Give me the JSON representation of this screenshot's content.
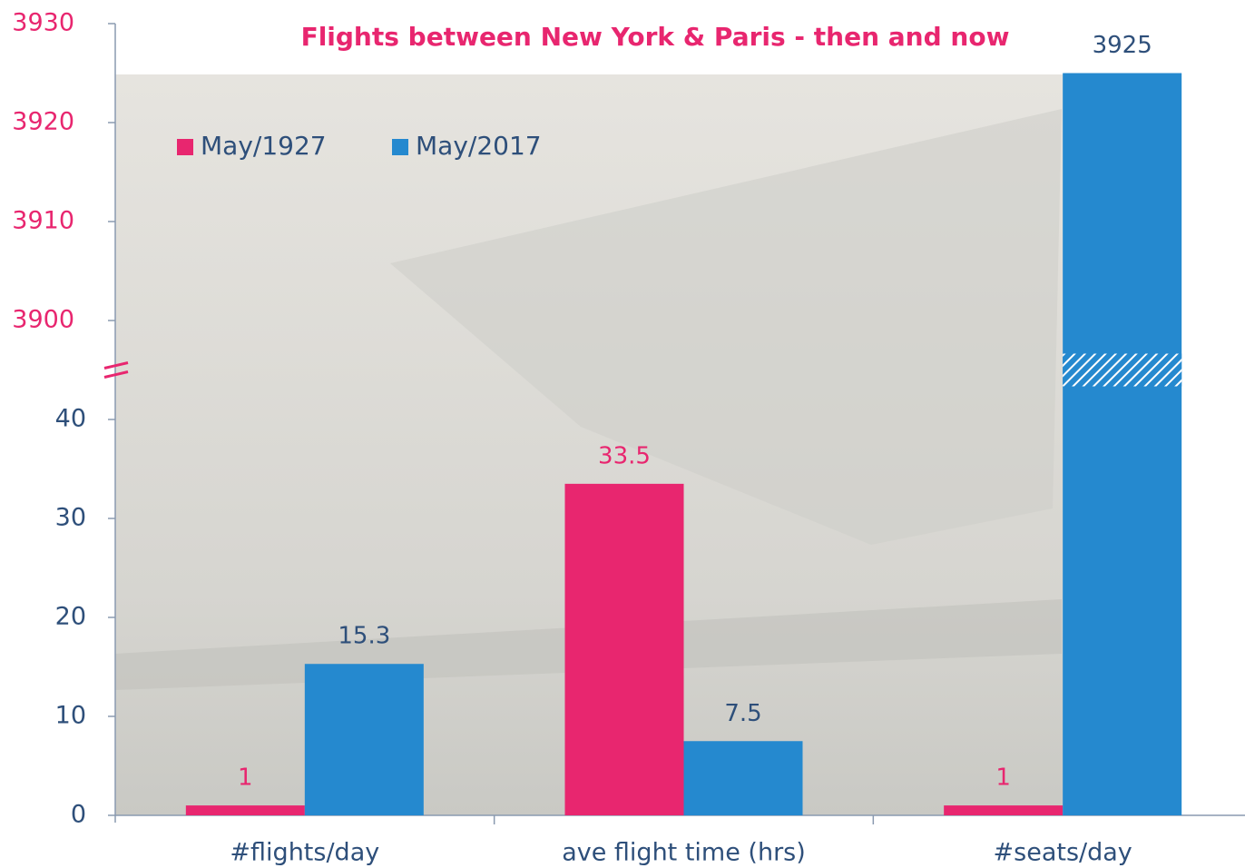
{
  "chart_data": {
    "type": "bar",
    "title": "Flights between New York & Paris - then and now",
    "categories": [
      "#flights/day",
      "ave flight time (hrs)",
      "#seats/day"
    ],
    "series": [
      {
        "name": "May/1927",
        "color": "#e8266f",
        "values": [
          1,
          33.5,
          1
        ]
      },
      {
        "name": "May/2017",
        "color": "#2589cf",
        "values": [
          15.3,
          7.5,
          3925
        ]
      }
    ],
    "ylim": [
      0,
      3930
    ],
    "yticks": [
      0,
      10,
      20,
      30,
      40,
      3900,
      3910,
      3920,
      3930
    ],
    "axis_break": true,
    "grid": false,
    "legend": "top-left"
  }
}
